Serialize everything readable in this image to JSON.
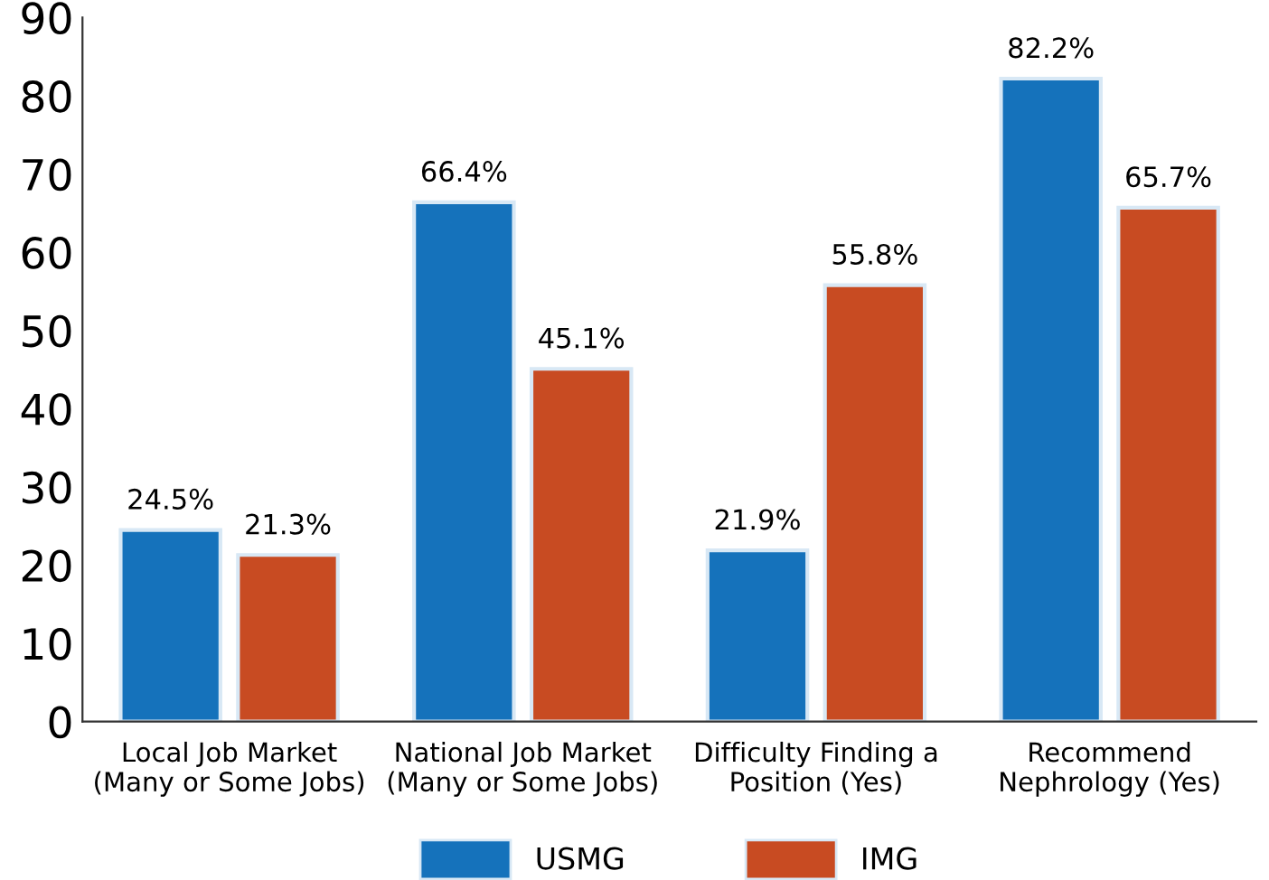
{
  "chart_data": {
    "type": "bar",
    "categories": [
      "Local Job Market\n(Many or Some Jobs)",
      "National Job Market\n(Many or Some Jobs)",
      "Difficulty Finding a\nPosition (Yes)",
      "Recommend\nNephrology (Yes)"
    ],
    "series": [
      {
        "name": "USMG",
        "color": "#1572bb",
        "values": [
          24.5,
          66.4,
          21.9,
          82.2
        ],
        "value_labels": [
          "24.5%",
          "66.4%",
          "21.9%",
          "82.2%"
        ]
      },
      {
        "name": "IMG",
        "color": "#c84b22",
        "values": [
          21.3,
          45.1,
          55.8,
          65.7
        ],
        "value_labels": [
          "21.3%",
          "45.1%",
          "55.8%",
          "65.7%"
        ]
      }
    ],
    "ylim": [
      0,
      90
    ],
    "yticks": [
      0,
      10,
      20,
      30,
      40,
      50,
      60,
      70,
      80,
      90
    ],
    "grid": false,
    "legend": "bottom"
  }
}
